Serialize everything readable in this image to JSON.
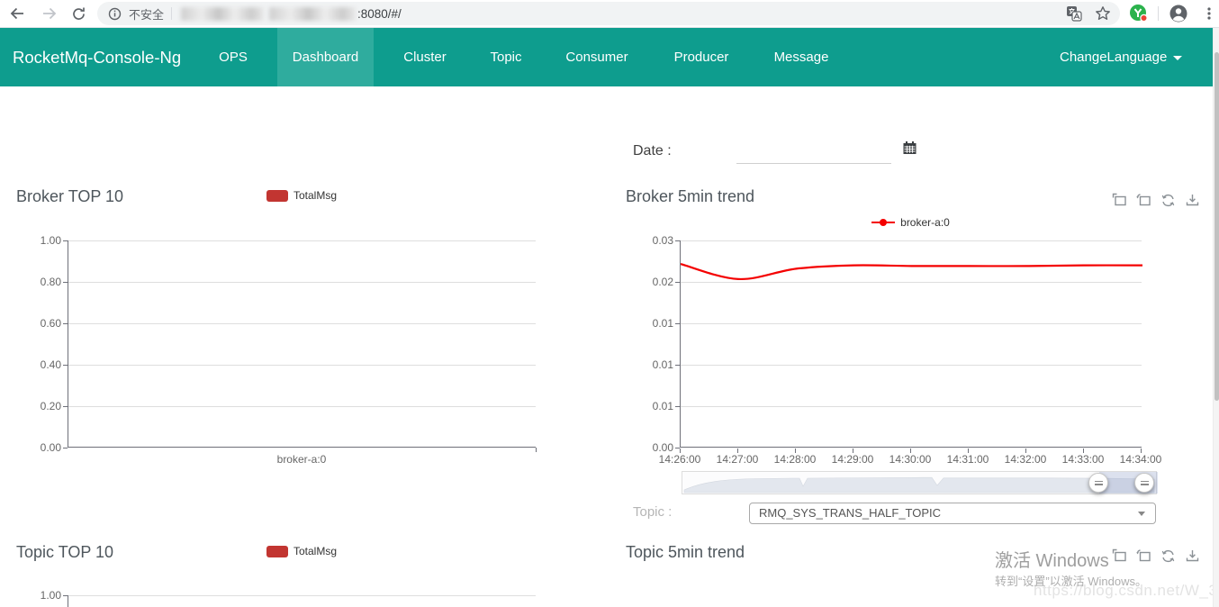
{
  "browser": {
    "security_label": "不安全",
    "url_visible": ":8080/#/"
  },
  "navbar": {
    "brand": "RocketMq-Console-Ng",
    "items": [
      "OPS",
      "Dashboard",
      "Cluster",
      "Topic",
      "Consumer",
      "Producer",
      "Message"
    ],
    "active_item": "Dashboard",
    "language_menu": "ChangeLanguage"
  },
  "filters": {
    "date_label": "Date :",
    "date_value": "",
    "topic_label": "Topic :",
    "topic_selected": "RMQ_SYS_TRANS_HALF_TOPIC"
  },
  "watermark": {
    "line1": "激活 Windows",
    "line2": "转到“设置”以激活 Windows。",
    "csdn": "https://blog.csdn.net/W_317"
  },
  "colors": {
    "navbar_teal": "#0e9d8e",
    "navbar_active": "#2fac9e",
    "legend_red": "#c23531",
    "trend_line_red": "#f40000",
    "datazoom_selected": "#cdd6e8"
  },
  "chart_data": [
    {
      "id": "broker_top10",
      "type": "bar",
      "title": "Broker TOP 10",
      "legend": [
        "TotalMsg"
      ],
      "categories": [
        "broker-a:0"
      ],
      "series": [
        {
          "name": "TotalMsg",
          "values": [
            0
          ]
        }
      ],
      "ylim": [
        0,
        1
      ],
      "ytick_labels": [
        "1.00",
        "0.80",
        "0.60",
        "0.40",
        "0.20",
        "0.00"
      ],
      "grid": true,
      "legend_position": "top-center"
    },
    {
      "id": "broker_5min_trend",
      "type": "line",
      "title": "Broker 5min trend",
      "legend": [
        "broker-a:0"
      ],
      "x": [
        "14:26:00",
        "14:27:00",
        "14:28:00",
        "14:29:00",
        "14:30:00",
        "14:31:00",
        "14:32:00",
        "14:33:00",
        "14:34:00"
      ],
      "series": [
        {
          "name": "broker-a:0",
          "values": [
            0.0266,
            0.0244,
            0.0259,
            0.0264,
            0.0263,
            0.0263,
            0.0263,
            0.0264,
            0.0264
          ]
        }
      ],
      "ylim": [
        0,
        0.03
      ],
      "ytick_labels": [
        "0.03",
        "0.02",
        "0.01",
        "0.01",
        "0.01",
        "0.00"
      ],
      "grid": true,
      "legend_position": "top-center",
      "datazoom_window_percent": [
        88,
        100
      ]
    },
    {
      "id": "topic_top10",
      "type": "bar",
      "title": "Topic TOP 10",
      "legend": [
        "TotalMsg"
      ],
      "ylim": [
        0,
        1
      ],
      "ytick_labels": [
        "1.00"
      ],
      "note_visible_portion": "only title, legend and first y tick visible"
    },
    {
      "id": "topic_5min_trend",
      "type": "line",
      "title": "Topic 5min trend"
    }
  ]
}
